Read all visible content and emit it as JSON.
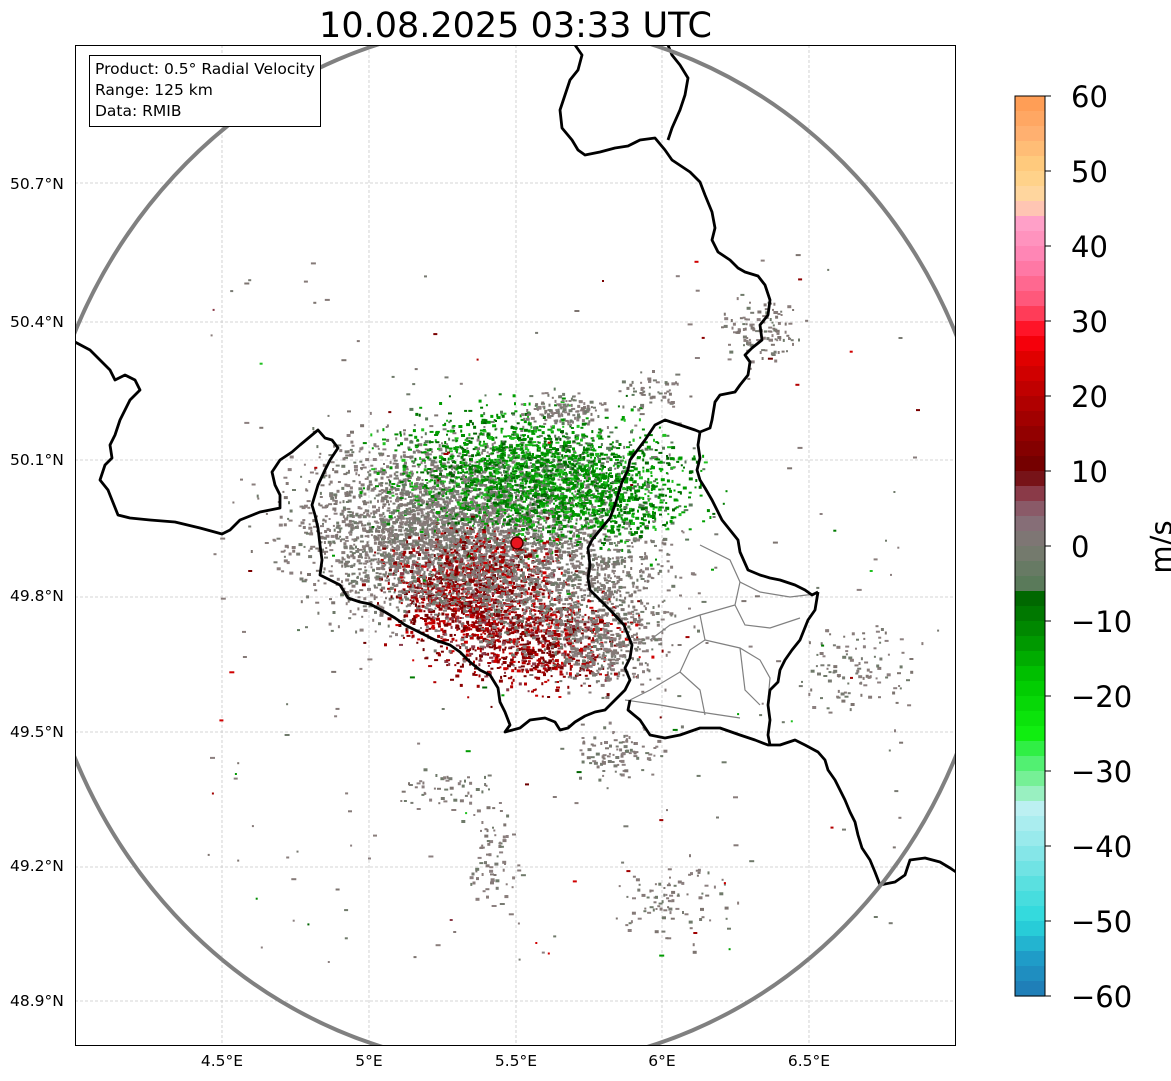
{
  "title": "10.08.2025 03:33 UTC",
  "info": {
    "product": "Product: 0.5° Radial Velocity",
    "range": "Range: 125 km",
    "data": "Data: RMIB"
  },
  "map": {
    "lon_range": [
      4.0,
      7.0
    ],
    "lat_range": [
      48.8,
      51.0
    ],
    "lat_ticks": [
      "50.7°N",
      "50.4°N",
      "50.1°N",
      "49.8°N",
      "49.5°N",
      "49.2°N",
      "48.9°N"
    ],
    "lon_ticks": [
      "4.5°E",
      "5°E",
      "5.5°E",
      "6°E",
      "6.5°E"
    ],
    "radar_site": {
      "lon": 5.505,
      "lat": 49.914
    },
    "range_km": 125,
    "colors": {
      "grid": "#c8c8c8",
      "border": "#000000",
      "region_border": "#808080",
      "range_ring": "#808080",
      "site": "#e8141e"
    }
  },
  "colorbar": {
    "unit": "m/s",
    "ticks": [
      "60",
      "50",
      "40",
      "30",
      "20",
      "10",
      "0",
      "−10",
      "−20",
      "−30",
      "−40",
      "−50",
      "−60"
    ],
    "range": [
      -60,
      60
    ]
  }
}
